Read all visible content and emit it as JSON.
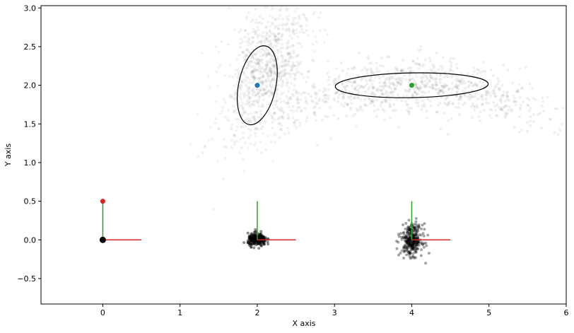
{
  "chart_data": {
    "type": "scatter",
    "title": "",
    "xlabel": "X axis",
    "ylabel": "Y axis",
    "xlim": [
      -0.8,
      6.0
    ],
    "ylim": [
      -0.83,
      3.03
    ],
    "xticks": [
      0,
      1,
      2,
      3,
      4,
      5,
      6
    ],
    "yticks": [
      -0.5,
      0.0,
      0.5,
      1.0,
      1.5,
      2.0,
      2.5,
      3.0
    ],
    "xtick_labels": [
      "0",
      "1",
      "2",
      "3",
      "4",
      "5",
      "6"
    ],
    "ytick_labels": [
      "−0.5",
      "0.0",
      "0.5",
      "1.0",
      "1.5",
      "2.0",
      "2.5",
      "3.0"
    ],
    "grid": false,
    "legend": "none",
    "origin_frame": {
      "point": [
        0,
        0
      ],
      "x_arrow_end": [
        0.5,
        0
      ],
      "y_arrow_end": [
        0,
        0.5
      ],
      "marker_color": "#d62728"
    },
    "frames": [
      {
        "point": [
          2,
          0
        ],
        "x_arrow_end": [
          2.5,
          0
        ],
        "y_arrow_end": [
          2,
          0.5
        ]
      },
      {
        "point": [
          4,
          0
        ],
        "x_arrow_end": [
          4.5,
          0
        ],
        "y_arrow_end": [
          4,
          0.5
        ]
      }
    ],
    "landmarks": [
      {
        "x": 2.0,
        "y": 2.0,
        "color": "#1f77b4",
        "ellipse": {
          "rx": 0.24,
          "ry": 0.52,
          "angle_deg": 12
        }
      },
      {
        "x": 4.0,
        "y": 2.0,
        "color": "#2ca02c",
        "ellipse": {
          "rx": 0.99,
          "ry": 0.16,
          "angle_deg": -1
        }
      }
    ],
    "particle_clouds": [
      {
        "name": "landmark-1-cloud",
        "center": [
          2.1,
          2.2
        ],
        "spread": [
          0.25,
          0.45
        ],
        "count": 900,
        "opacity": 0.05
      },
      {
        "name": "landmark-2-cloud",
        "center": [
          4.0,
          1.95
        ],
        "spread": [
          0.9,
          0.18
        ],
        "count": 900,
        "opacity": 0.06
      },
      {
        "name": "pose-1-cloud",
        "center": [
          2.0,
          0.0
        ],
        "spread": [
          0.06,
          0.04
        ],
        "count": 250,
        "opacity": 0.45
      },
      {
        "name": "pose-2-cloud",
        "center": [
          4.0,
          0.0
        ],
        "spread": [
          0.07,
          0.1
        ],
        "count": 300,
        "opacity": 0.35
      }
    ],
    "colors": {
      "x_arrow": "#d62728",
      "y_arrow": "#2ca02c",
      "particles": "#000000",
      "ellipse": "#000000"
    }
  }
}
